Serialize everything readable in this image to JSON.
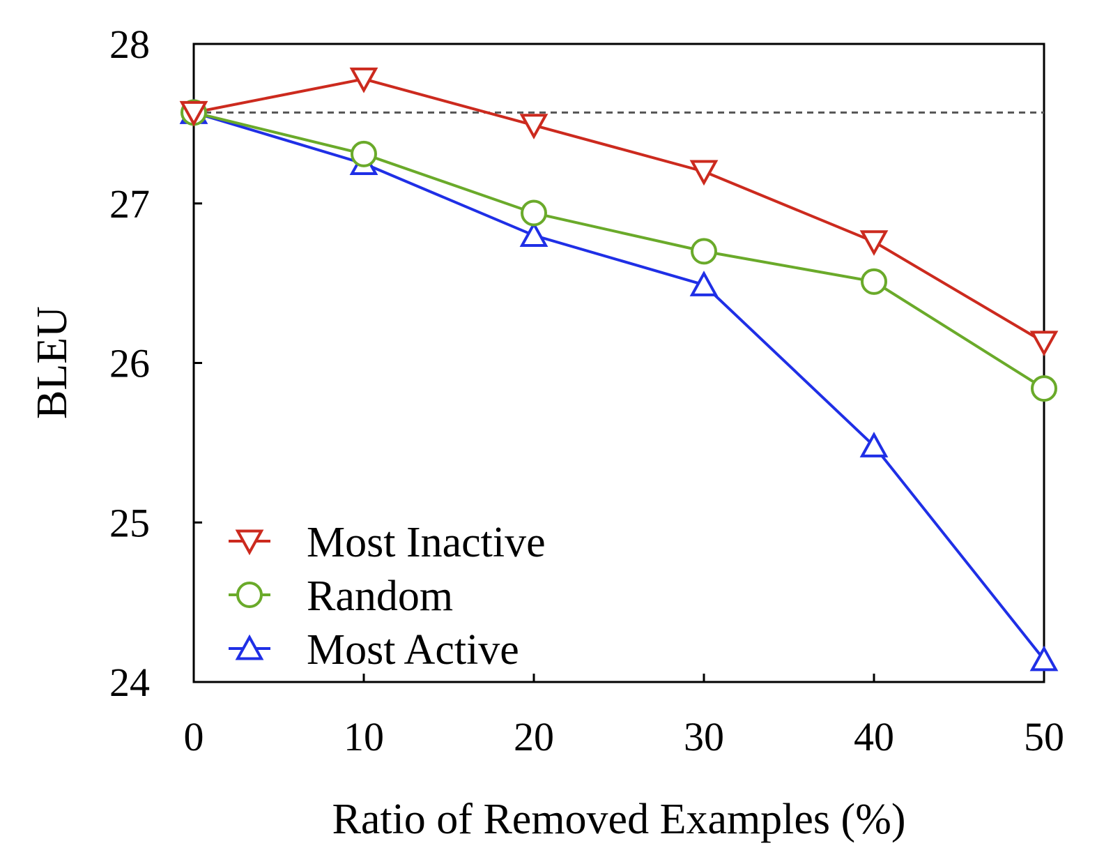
{
  "chart_data": {
    "type": "line",
    "xlabel": "Ratio of Removed Examples (%)",
    "ylabel": "BLEU",
    "x": [
      0,
      10,
      20,
      30,
      40,
      50
    ],
    "xticks": [
      "0",
      "10",
      "20",
      "30",
      "40",
      "50"
    ],
    "yticks": [
      "24",
      "25",
      "26",
      "27",
      "28"
    ],
    "xlim": [
      0,
      50
    ],
    "ylim": [
      24,
      28
    ],
    "grid": false,
    "legend_position": "lower-left",
    "baseline": {
      "value": 27.57,
      "style": "dashed",
      "color": "#555555"
    },
    "series": [
      {
        "name": "Most Inactive",
        "color": "#cc2a1e",
        "marker": "triangle-down",
        "values": [
          27.57,
          27.78,
          27.49,
          27.2,
          26.76,
          26.13
        ]
      },
      {
        "name": "Random",
        "color": "#6aaa2a",
        "marker": "circle",
        "values": [
          27.57,
          27.31,
          26.94,
          26.7,
          26.51,
          25.84
        ]
      },
      {
        "name": "Most Active",
        "color": "#1f2fe6",
        "marker": "triangle-up",
        "values": [
          27.57,
          27.25,
          26.8,
          26.49,
          25.48,
          24.14
        ]
      }
    ]
  }
}
